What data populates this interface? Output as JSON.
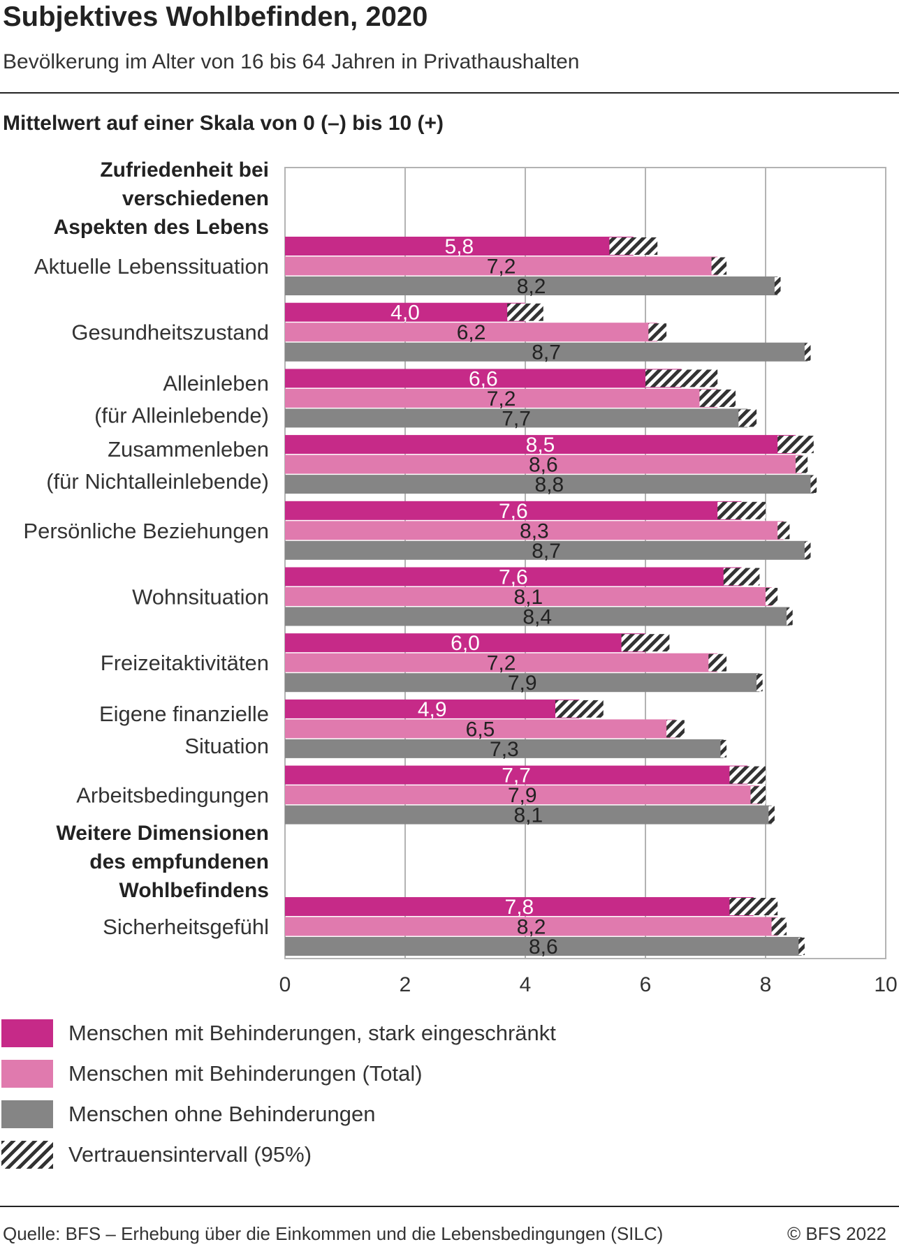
{
  "title": "Subjektives Wohlbefinden, 2020",
  "subtitle": "Bevölkerung im Alter von 16 bis 64 Jahren in Privathaushalten",
  "measure_label": "Mittelwert auf einer Skala von 0 (–) bis 10 (+)",
  "source": "Quelle: BFS – Erhebung über die Einkommen und die Lebensbedingungen (SILC)",
  "copyright": "© BFS 2022",
  "colors": {
    "stark": "#c62a88",
    "total": "#e07aae",
    "ohne": "#858585",
    "grid": "#b3b3b3",
    "text": "#222222"
  },
  "legend": [
    {
      "label": "Menschen mit Behinderungen, stark eingeschränkt",
      "type": "swatch",
      "color": "#c62a88"
    },
    {
      "label": "Menschen mit Behinderungen (Total)",
      "type": "swatch",
      "color": "#e07aae"
    },
    {
      "label": "Menschen ohne Behinderungen",
      "type": "swatch",
      "color": "#858585"
    },
    {
      "label": "Vertrauensintervall (95%)",
      "type": "hatch",
      "color": "#333333"
    }
  ],
  "chart_data": {
    "type": "bar",
    "orientation": "horizontal",
    "xlim": [
      0,
      10
    ],
    "xticks": [
      "0",
      "2",
      "4",
      "6",
      "8",
      "10"
    ],
    "grid": true,
    "legend_position": "bottom",
    "series": [
      {
        "name": "Menschen mit Behinderungen, stark eingeschränkt",
        "color": "#c62a88"
      },
      {
        "name": "Menschen mit Behinderungen (Total)",
        "color": "#e07aae"
      },
      {
        "name": "Menschen ohne Behinderungen",
        "color": "#858585"
      }
    ],
    "groups": [
      {
        "heading": [
          "Zufriedenheit bei",
          "verschiedenen",
          "Aspekten des Lebens"
        ],
        "categories": [
          {
            "label": [
              "Aktuelle Lebenssituation"
            ],
            "values": [
              5.8,
              7.2,
              8.2
            ],
            "labels": [
              "5,8",
              "7,2",
              "8,2"
            ],
            "ci": [
              [
                5.4,
                6.2
              ],
              [
                7.1,
                7.35
              ],
              [
                8.15,
                8.25
              ]
            ]
          },
          {
            "label": [
              "Gesundheitszustand"
            ],
            "values": [
              4.0,
              6.2,
              8.7
            ],
            "labels": [
              "4,0",
              "6,2",
              "8,7"
            ],
            "ci": [
              [
                3.7,
                4.3
              ],
              [
                6.05,
                6.35
              ],
              [
                8.65,
                8.75
              ]
            ]
          },
          {
            "label": [
              "Alleinleben",
              "(für Alleinlebende)"
            ],
            "values": [
              6.6,
              7.2,
              7.7
            ],
            "labels": [
              "6,6",
              "7,2",
              "7,7"
            ],
            "ci": [
              [
                6.0,
                7.2
              ],
              [
                6.9,
                7.5
              ],
              [
                7.55,
                7.85
              ]
            ]
          },
          {
            "label": [
              "Zusammenleben",
              "(für Nichtalleinlebende)"
            ],
            "values": [
              8.5,
              8.6,
              8.8
            ],
            "labels": [
              "8,5",
              "8,6",
              "8,8"
            ],
            "ci": [
              [
                8.2,
                8.8
              ],
              [
                8.5,
                8.7
              ],
              [
                8.75,
                8.85
              ]
            ]
          },
          {
            "label": [
              "Persönliche Beziehungen"
            ],
            "values": [
              7.6,
              8.3,
              8.7
            ],
            "labels": [
              "7,6",
              "8,3",
              "8,7"
            ],
            "ci": [
              [
                7.2,
                8.0
              ],
              [
                8.2,
                8.4
              ],
              [
                8.65,
                8.75
              ]
            ]
          },
          {
            "label": [
              "Wohnsituation"
            ],
            "values": [
              7.6,
              8.1,
              8.4
            ],
            "labels": [
              "7,6",
              "8,1",
              "8,4"
            ],
            "ci": [
              [
                7.3,
                7.9
              ],
              [
                8.0,
                8.2
              ],
              [
                8.35,
                8.45
              ]
            ]
          },
          {
            "label": [
              "Freizeitaktivitäten"
            ],
            "values": [
              6.0,
              7.2,
              7.9
            ],
            "labels": [
              "6,0",
              "7,2",
              "7,9"
            ],
            "ci": [
              [
                5.6,
                6.4
              ],
              [
                7.05,
                7.35
              ],
              [
                7.85,
                7.95
              ]
            ]
          },
          {
            "label": [
              "Eigene finanzielle",
              "Situation"
            ],
            "values": [
              4.9,
              6.5,
              7.3
            ],
            "labels": [
              "4,9",
              "6,5",
              "7,3"
            ],
            "ci": [
              [
                4.5,
                5.3
              ],
              [
                6.35,
                6.65
              ],
              [
                7.25,
                7.35
              ]
            ]
          },
          {
            "label": [
              "Arbeitsbedingungen"
            ],
            "values": [
              7.7,
              7.9,
              8.1
            ],
            "labels": [
              "7,7",
              "7,9",
              "8,1"
            ],
            "ci": [
              [
                7.4,
                8.0
              ],
              [
                7.75,
                8.0
              ],
              [
                8.05,
                8.15
              ]
            ]
          }
        ]
      },
      {
        "heading": [
          "Weitere Dimensionen",
          "des empfundenen",
          "Wohlbefindens"
        ],
        "categories": [
          {
            "label": [
              "Sicherheitsgefühl"
            ],
            "values": [
              7.8,
              8.2,
              8.6
            ],
            "labels": [
              "7,8",
              "8,2",
              "8,6"
            ],
            "ci": [
              [
                7.4,
                8.2
              ],
              [
                8.1,
                8.35
              ],
              [
                8.55,
                8.65
              ]
            ]
          }
        ]
      }
    ]
  }
}
